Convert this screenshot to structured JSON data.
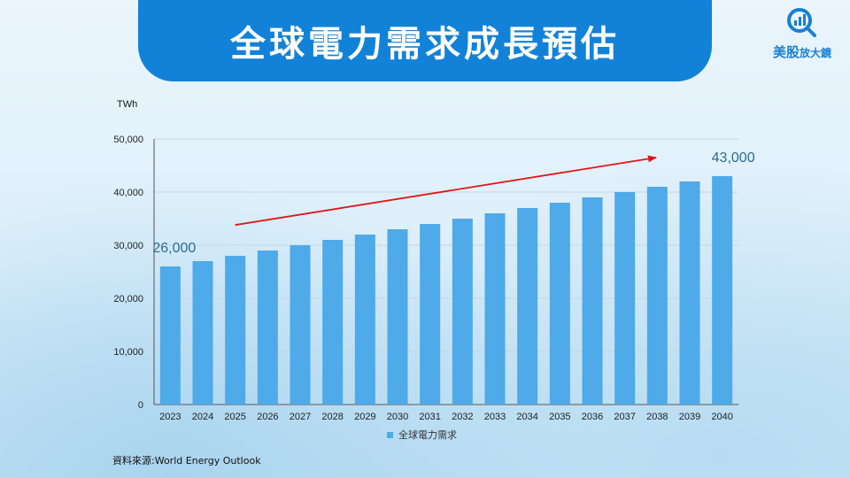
{
  "header": {
    "title": "全球電力需求成長預估"
  },
  "logo": {
    "name": "美股",
    "suffix": "放大鏡",
    "icon": "chart-magnifier-icon",
    "color": "#1a7fd2"
  },
  "source": "資料來源:World Energy Outlook",
  "colors": {
    "banner": "#1282d8",
    "bar": "#4eaae8",
    "trend_arrow": "#e0161a",
    "annotation": "#2f6a8e"
  },
  "chart_data": {
    "type": "bar",
    "unit_label": "TWh",
    "categories": [
      "2023",
      "2024",
      "2025",
      "2026",
      "2027",
      "2028",
      "2029",
      "2030",
      "2031",
      "2032",
      "2033",
      "2034",
      "2035",
      "2036",
      "2037",
      "2038",
      "2039",
      "2040"
    ],
    "series": [
      {
        "name": "全球電力需求",
        "values": [
          26000,
          27000,
          28000,
          29000,
          30000,
          31000,
          32000,
          33000,
          34000,
          35000,
          36000,
          37000,
          38000,
          39000,
          40000,
          41000,
          42000,
          43000
        ]
      }
    ],
    "ylim": [
      0,
      50000
    ],
    "yticks": [
      "0",
      "10,000",
      "20,000",
      "30,000",
      "40,000",
      "50,000"
    ],
    "annotations": [
      {
        "text": "26,000",
        "category": "2023"
      },
      {
        "text": "43,000",
        "category": "2040"
      }
    ],
    "trend_arrow": {
      "from": [
        "2025",
        33800
      ],
      "to": [
        "2039",
        46500
      ]
    },
    "grid": true,
    "legend": "bottom"
  }
}
